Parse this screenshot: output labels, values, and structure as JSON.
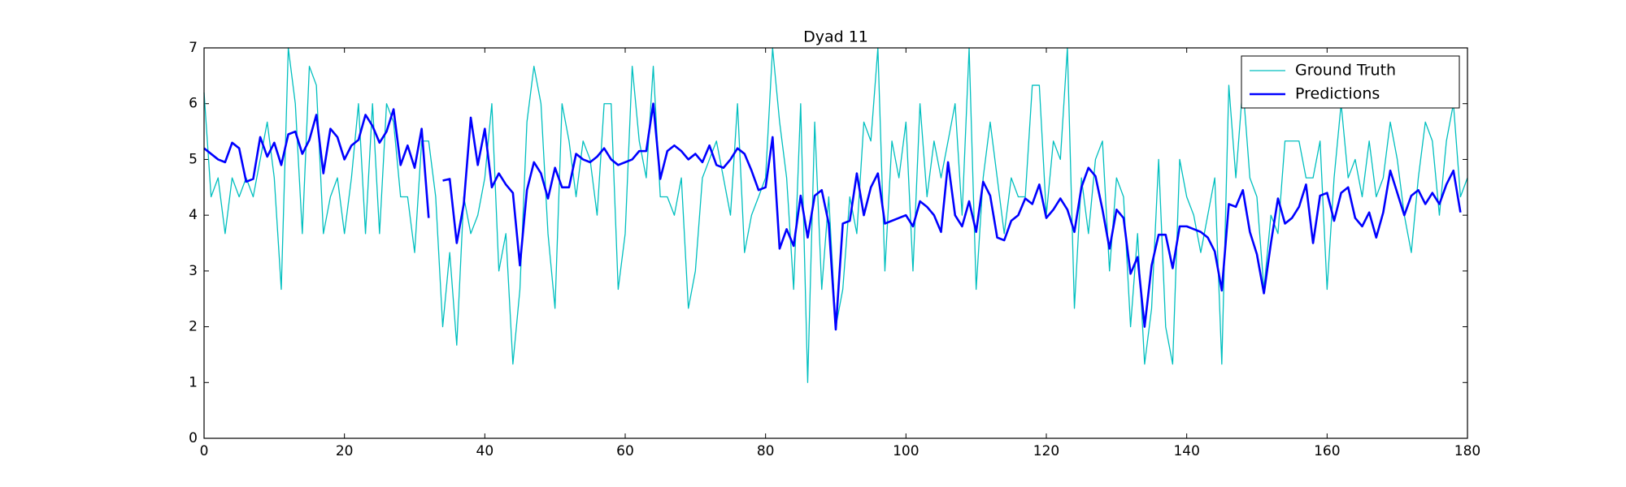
{
  "chart_data": {
    "type": "line",
    "title": "Dyad 11",
    "x": [
      0,
      1,
      2,
      3,
      4,
      5,
      6,
      7,
      8,
      9,
      10,
      11,
      12,
      13,
      14,
      15,
      16,
      17,
      18,
      19,
      20,
      21,
      22,
      23,
      24,
      25,
      26,
      27,
      28,
      29,
      30,
      31,
      32,
      33,
      34,
      35,
      36,
      37,
      38,
      39,
      40,
      41,
      42,
      43,
      44,
      45,
      46,
      47,
      48,
      49,
      50,
      51,
      52,
      53,
      54,
      55,
      56,
      57,
      58,
      59,
      60,
      61,
      62,
      63,
      64,
      65,
      66,
      67,
      68,
      69,
      70,
      71,
      72,
      73,
      74,
      75,
      76,
      77,
      78,
      79,
      80,
      81,
      82,
      83,
      84,
      85,
      86,
      87,
      88,
      89,
      90,
      91,
      92,
      93,
      94,
      95,
      96,
      97,
      98,
      99,
      100,
      101,
      102,
      103,
      104,
      105,
      106,
      107,
      108,
      109,
      110,
      111,
      112,
      113,
      114,
      115,
      116,
      117,
      118,
      119,
      120,
      121,
      122,
      123,
      124,
      125,
      126,
      127,
      128,
      129,
      130,
      131,
      132,
      133,
      134,
      135,
      136,
      137,
      138,
      139,
      140,
      141,
      142,
      143,
      144,
      145,
      146,
      147,
      148,
      149,
      150,
      151,
      152,
      153,
      154,
      155,
      156,
      157,
      158,
      159,
      160,
      161,
      162,
      163,
      164,
      165,
      166,
      167,
      168,
      169,
      170,
      171,
      172,
      173,
      174,
      175,
      176,
      177,
      178,
      179,
      180
    ],
    "series": [
      {
        "name": "Ground Truth",
        "color": "#00bfbf",
        "width": 1.3,
        "values": [
          6.2,
          4.33,
          4.67,
          3.67,
          4.67,
          4.33,
          4.67,
          4.33,
          5.0,
          5.67,
          4.67,
          2.67,
          7.0,
          6.0,
          3.67,
          6.67,
          6.33,
          3.67,
          4.33,
          4.67,
          3.67,
          4.67,
          6.0,
          3.67,
          6.0,
          3.67,
          6.0,
          5.67,
          4.33,
          4.33,
          3.33,
          5.33,
          5.33,
          4.33,
          2.0,
          3.33,
          1.67,
          4.33,
          3.67,
          4.0,
          4.67,
          6.0,
          3.0,
          3.67,
          1.33,
          2.67,
          5.67,
          6.67,
          6.0,
          3.67,
          2.33,
          6.0,
          5.33,
          4.33,
          5.33,
          5.0,
          4.0,
          6.0,
          6.0,
          2.67,
          3.67,
          6.67,
          5.33,
          4.67,
          6.67,
          4.33,
          4.33,
          4.0,
          4.67,
          2.33,
          3.0,
          4.67,
          5.0,
          5.33,
          4.67,
          4.0,
          6.0,
          3.33,
          4.0,
          4.33,
          4.67,
          7.0,
          5.67,
          4.67,
          2.67,
          6.0,
          1.0,
          5.67,
          2.67,
          4.33,
          2.0,
          2.67,
          4.33,
          3.67,
          5.67,
          5.33,
          7.0,
          3.0,
          5.33,
          4.67,
          5.67,
          3.0,
          6.0,
          4.33,
          5.33,
          4.67,
          5.33,
          6.0,
          4.0,
          7.0,
          2.67,
          4.67,
          5.67,
          4.67,
          3.67,
          4.67,
          4.33,
          4.33,
          6.33,
          6.33,
          4.0,
          5.33,
          5.0,
          7.0,
          2.33,
          4.67,
          3.67,
          5.0,
          5.33,
          3.0,
          4.67,
          4.33,
          2.0,
          3.67,
          1.33,
          2.33,
          5.0,
          2.0,
          1.33,
          5.0,
          4.33,
          4.0,
          3.33,
          4.0,
          4.67,
          1.33,
          6.33,
          4.67,
          6.33,
          4.67,
          4.33,
          2.67,
          4.0,
          3.67,
          5.33,
          5.33,
          5.33,
          4.67,
          4.67,
          5.33,
          2.67,
          4.67,
          6.0,
          4.67,
          5.0,
          4.33,
          5.33,
          4.33,
          4.67,
          5.67,
          5.0,
          4.0,
          3.33,
          4.67,
          5.67,
          5.33,
          4.0,
          5.33,
          6.0,
          4.33,
          4.67
        ]
      },
      {
        "name": "Predictions",
        "color": "#0000ff",
        "width": 2.6,
        "values": [
          5.2,
          5.1,
          5.0,
          4.95,
          5.3,
          5.2,
          4.6,
          4.65,
          5.4,
          5.05,
          5.3,
          4.9,
          5.45,
          5.5,
          5.1,
          5.35,
          5.8,
          4.75,
          5.55,
          5.4,
          5.0,
          5.25,
          5.35,
          5.8,
          5.6,
          5.3,
          5.5,
          5.9,
          4.9,
          5.25,
          4.85,
          5.55,
          3.95,
          null,
          4.62,
          4.65,
          3.5,
          4.2,
          5.75,
          4.9,
          5.55,
          4.5,
          4.75,
          4.55,
          4.4,
          3.1,
          4.45,
          4.95,
          4.75,
          4.3,
          4.85,
          4.5,
          4.5,
          5.1,
          5.0,
          4.95,
          5.05,
          5.2,
          5.0,
          4.9,
          4.95,
          5.0,
          5.15,
          5.15,
          6.0,
          4.65,
          5.15,
          5.25,
          5.15,
          5.0,
          5.1,
          4.95,
          5.25,
          4.9,
          4.85,
          5.0,
          5.2,
          5.1,
          4.8,
          4.45,
          4.5,
          5.4,
          3.4,
          3.75,
          3.45,
          4.35,
          3.6,
          4.35,
          4.45,
          3.85,
          1.95,
          3.85,
          3.9,
          4.75,
          4.0,
          4.5,
          4.75,
          3.85,
          3.9,
          3.95,
          4.0,
          3.8,
          4.25,
          4.15,
          4.0,
          3.7,
          4.95,
          4.0,
          3.8,
          4.25,
          3.7,
          4.6,
          4.35,
          3.6,
          3.55,
          3.9,
          4.0,
          4.3,
          4.2,
          4.55,
          3.95,
          4.1,
          4.3,
          4.1,
          3.7,
          4.5,
          4.85,
          4.7,
          4.1,
          3.4,
          4.1,
          3.95,
          2.95,
          3.25,
          2.0,
          3.1,
          3.65,
          3.65,
          3.05,
          3.8,
          3.8,
          3.75,
          3.7,
          3.6,
          3.35,
          2.65,
          4.2,
          4.15,
          4.45,
          3.7,
          3.3,
          2.6,
          3.5,
          4.3,
          3.85,
          3.95,
          4.15,
          4.55,
          3.5,
          4.35,
          4.4,
          3.9,
          4.4,
          4.5,
          3.95,
          3.8,
          4.05,
          3.6,
          4.05,
          4.8,
          4.4,
          4.0,
          4.35,
          4.45,
          4.2,
          4.4,
          4.2,
          4.55,
          4.8,
          4.05,
          null
        ]
      }
    ],
    "xlim": [
      0,
      180
    ],
    "xticks": [
      0,
      20,
      40,
      60,
      80,
      100,
      120,
      140,
      160,
      180
    ],
    "ylim": [
      0,
      7
    ],
    "yticks": [
      0,
      1,
      2,
      3,
      4,
      5,
      6,
      7
    ],
    "legend": "upper right"
  }
}
